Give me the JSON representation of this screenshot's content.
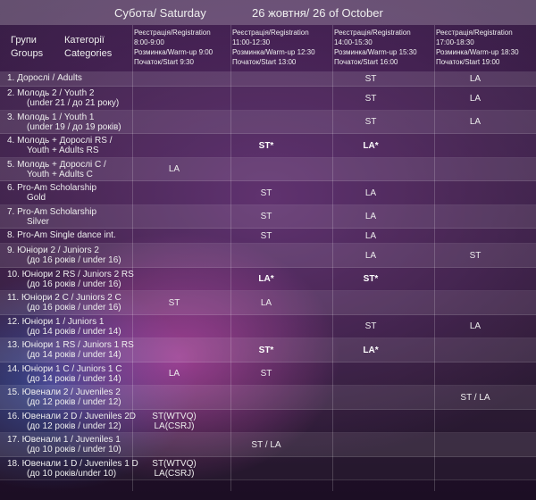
{
  "header": {
    "day": "Субота/ Saturday",
    "date": "26 жовтня/ 26 of October"
  },
  "columns": {
    "group": [
      "Групи",
      "Groups"
    ],
    "category": [
      "Категорії",
      "Categories"
    ],
    "sessions": [
      [
        "Реєстрація/Registration",
        "8:00-9:00",
        "Розминка/Warm-up 9:00",
        "Початок/Start 9:30"
      ],
      [
        "Реєстрація/Registration",
        "11:00-12:30",
        "Розминка/Warm-up 12:30",
        "Початок/Start 13:00"
      ],
      [
        "Реєстрація/Registration",
        "14:00-15:30",
        "Розминка/Warm-up 15:30",
        "Початок/Start 16:00"
      ],
      [
        "Реєстрація/Registration",
        "17:00-18:30",
        "Розминка/Warm-up 18:30",
        "Початок/Start 19:00"
      ]
    ]
  },
  "rows": [
    {
      "label": [
        "1. Дорослі / Adults"
      ],
      "cells": [
        null,
        null,
        "ST",
        "LA"
      ]
    },
    {
      "label": [
        "2. Молодь 2 / Youth 2",
        "(under 21 / до 21 року)"
      ],
      "cells": [
        null,
        null,
        "ST",
        "LA"
      ]
    },
    {
      "label": [
        "3. Молодь 1 / Youth 1",
        "(under 19 / до 19 років)"
      ],
      "cells": [
        null,
        null,
        "ST",
        "LA"
      ]
    },
    {
      "label": [
        "4. Молодь + Дорослі RS /",
        "Youth + Adults RS"
      ],
      "cells": [
        null,
        "ST*",
        "LA*",
        null
      ]
    },
    {
      "label": [
        "5. Молодь + Дорослі С /",
        "Youth + Adults C"
      ],
      "cells": [
        "LA",
        null,
        null,
        null
      ]
    },
    {
      "label": [
        "6. Pro-Am Scholarship",
        "Gold"
      ],
      "cells": [
        null,
        "ST",
        "LA",
        null
      ]
    },
    {
      "label": [
        "7. Pro-Am Scholarship",
        "Silver"
      ],
      "cells": [
        null,
        "ST",
        "LA",
        null
      ]
    },
    {
      "label": [
        "8. Pro-Am Single dance int."
      ],
      "cells": [
        null,
        "ST",
        "LA",
        null
      ]
    },
    {
      "label": [
        "9. Юніори 2 / Juniors 2",
        "(до 16 років / under 16)"
      ],
      "cells": [
        null,
        null,
        "LA",
        "ST"
      ]
    },
    {
      "label": [
        "10. Юніори 2 RS / Juniors 2 RS",
        "(до 16 років / under 16)"
      ],
      "cells": [
        null,
        "LA*",
        "ST*",
        null
      ]
    },
    {
      "label": [
        "11. Юніори 2 C / Juniors 2 C",
        "(до 16 років / under 16)"
      ],
      "cells": [
        "ST",
        "LA",
        null,
        null
      ]
    },
    {
      "label": [
        "12. Юніори 1 / Juniors 1",
        "(до 14 років / under 14)"
      ],
      "cells": [
        null,
        null,
        "ST",
        "LA"
      ]
    },
    {
      "label": [
        "13. Юніори 1 RS / Juniors 1 RS",
        "(до 14 років / under 14)"
      ],
      "cells": [
        null,
        "ST*",
        "LA*",
        null
      ]
    },
    {
      "label": [
        "14. Юніори 1 C / Juniors 1 C",
        "(до 14 років / under 14)"
      ],
      "cells": [
        "LA",
        "ST",
        null,
        null
      ]
    },
    {
      "label": [
        "15. Ювенали 2 / Juveniles 2",
        "(до 12 років / under 12)"
      ],
      "cells": [
        null,
        null,
        null,
        "ST / LA"
      ]
    },
    {
      "label": [
        "16. Ювенали 2 D / Juveniles 2D",
        "(до 12 років / under 12)"
      ],
      "cells": [
        [
          "ST(WTVQ)",
          "LA(CSRJ)"
        ],
        null,
        null,
        null
      ]
    },
    {
      "label": [
        "17. Ювенали 1 / Juveniles 1",
        "(до 10 років / under 10)"
      ],
      "cells": [
        null,
        "ST / LA",
        null,
        null
      ]
    },
    {
      "label": [
        "18. Ювенали 1 D / Juveniles 1 D",
        "(до 10 років/under 10)"
      ],
      "cells": [
        [
          "ST(WTVQ)",
          "LA(CSRJ)"
        ],
        null,
        null,
        null
      ]
    }
  ]
}
